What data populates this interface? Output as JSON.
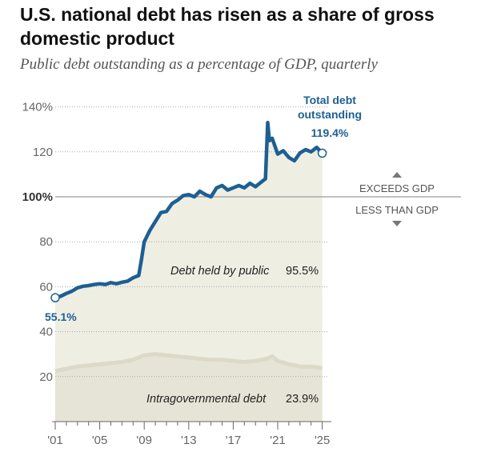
{
  "title": "U.S. national debt has risen as a share of gross domestic product",
  "subtitle": "Public debt outstanding as a percentage of GDP, quarterly",
  "colors": {
    "total_line": "#1d5f93",
    "public_area": "#efeee3",
    "intragov_area": "#e6e4d6",
    "intragov_band": "#ddd9c9",
    "axis_text": "#666666",
    "threshold_line": "#9a9a9a"
  },
  "chart_data": {
    "type": "area",
    "ylim": [
      0,
      150
    ],
    "xlim": [
      2001,
      2025.5
    ],
    "y_ticks": [
      {
        "value": 20,
        "label": "20"
      },
      {
        "value": 40,
        "label": "40"
      },
      {
        "value": 60,
        "label": "60"
      },
      {
        "value": 80,
        "label": "80"
      },
      {
        "value": 100,
        "label": "100%"
      },
      {
        "value": 120,
        "label": "120"
      },
      {
        "value": 140,
        "label": "140%"
      }
    ],
    "x_ticks": [
      {
        "value": 2001,
        "label": "'01"
      },
      {
        "value": 2005,
        "label": "'05"
      },
      {
        "value": 2009,
        "label": "'09"
      },
      {
        "value": 2013,
        "label": "'13"
      },
      {
        "value": 2017,
        "label": "'17"
      },
      {
        "value": 2021,
        "label": "'21"
      },
      {
        "value": 2025,
        "label": "'25"
      }
    ],
    "threshold": {
      "value": 100,
      "above_label": "EXCEEDS GDP",
      "below_label": "LESS THAN GDP"
    },
    "series": [
      {
        "name": "Total debt outstanding",
        "label": "Total debt\noutstanding",
        "start_label": "55.1%",
        "end_label": "119.4%",
        "x": [
          2001,
          2001.5,
          2002,
          2002.5,
          2003,
          2003.5,
          2004,
          2004.5,
          2005,
          2005.5,
          2006,
          2006.5,
          2007,
          2007.5,
          2008,
          2008.5,
          2008.75,
          2009,
          2009.5,
          2010,
          2010.5,
          2011,
          2011.5,
          2012,
          2012.5,
          2013,
          2013.5,
          2014,
          2014.5,
          2015,
          2015.5,
          2016,
          2016.5,
          2017,
          2017.5,
          2018,
          2018.5,
          2019,
          2019.5,
          2019.9,
          2020.1,
          2020.25,
          2020.5,
          2021,
          2021.5,
          2022,
          2022.5,
          2023,
          2023.5,
          2024,
          2024.5,
          2025
        ],
        "values": [
          55.1,
          55.8,
          57,
          58,
          59.5,
          60.2,
          60.5,
          61,
          61.3,
          61,
          61.8,
          61.3,
          62,
          62.5,
          64,
          65,
          72,
          80,
          85,
          89,
          93,
          93.5,
          97,
          98.5,
          100.5,
          101,
          100,
          102.5,
          101,
          100,
          104,
          105,
          103,
          104,
          105,
          104,
          106,
          104.5,
          106.5,
          108,
          133,
          125,
          126,
          119,
          120.5,
          117.5,
          116,
          119.5,
          121,
          120,
          122,
          119.4
        ]
      },
      {
        "name": "Debt held by public",
        "label": "Debt held by public",
        "end_label": "95.5%"
      },
      {
        "name": "Intragovernmental debt",
        "label": "Intragovernmental debt",
        "end_label": "23.9%",
        "x": [
          2001,
          2002,
          2003,
          2004,
          2005,
          2006,
          2007,
          2008,
          2009,
          2010,
          2011,
          2012,
          2013,
          2014,
          2015,
          2016,
          2017,
          2018,
          2019,
          2020,
          2020.5,
          2021,
          2022,
          2023,
          2024,
          2025
        ],
        "values": [
          22.5,
          23.5,
          24.5,
          25,
          25.5,
          26,
          26.5,
          27.5,
          29.5,
          30,
          29.5,
          29,
          28.5,
          28,
          27.5,
          27.5,
          27,
          26.5,
          27,
          28,
          29,
          27,
          25.5,
          24.5,
          24.5,
          23.9
        ]
      }
    ]
  }
}
